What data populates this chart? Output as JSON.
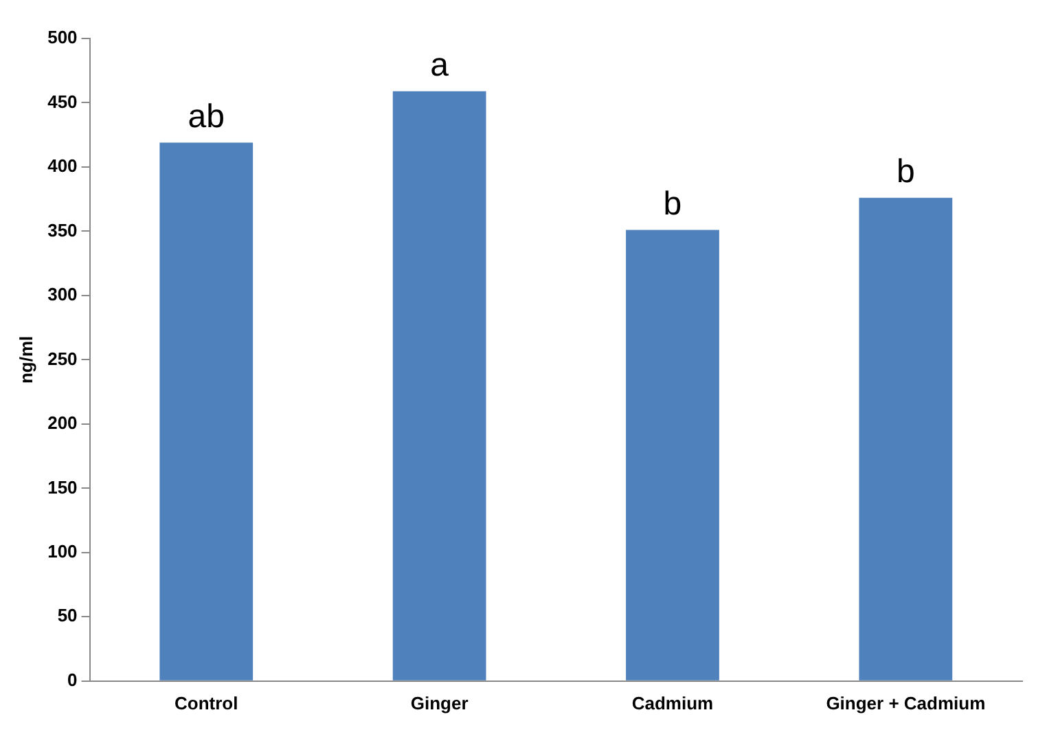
{
  "chart_data": {
    "type": "bar",
    "ylabel": "ng/ml",
    "categories": [
      "Control",
      "Ginger",
      "Cadmium",
      "Ginger + Cadmium"
    ],
    "values": [
      419,
      459,
      351,
      376
    ],
    "color": "#4f81bd",
    "ylim": [
      0,
      500
    ],
    "yticks": [
      0,
      50,
      100,
      150,
      200,
      250,
      300,
      350,
      400,
      450,
      500
    ],
    "grid": false,
    "legend": false,
    "annotations": [
      {
        "text": "ab",
        "x": "Control",
        "y": 419
      },
      {
        "text": "a",
        "x": "Ginger",
        "y": 459
      },
      {
        "text": "b",
        "x": "Cadmium",
        "y": 351
      },
      {
        "text": "b",
        "x": "Ginger + Cadmium",
        "y": 376
      }
    ]
  }
}
